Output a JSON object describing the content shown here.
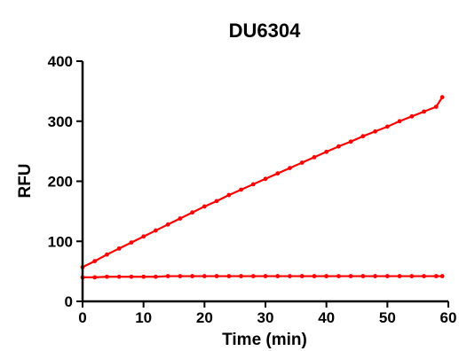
{
  "chart_data": {
    "type": "line",
    "title": "DU6304",
    "xlabel": "Time (min)",
    "ylabel": "RFU",
    "xlim": [
      0,
      60
    ],
    "ylim": [
      0,
      400
    ],
    "xticks": [
      0,
      10,
      20,
      30,
      40,
      50,
      60
    ],
    "yticks": [
      0,
      100,
      200,
      300,
      400
    ],
    "grid": false,
    "series_color": "#ff0000",
    "series": [
      {
        "x": [
          0,
          2,
          4,
          6,
          8,
          10,
          12,
          14,
          16,
          18,
          20,
          22,
          24,
          26,
          28,
          30,
          32,
          34,
          36,
          38,
          40,
          42,
          44,
          46,
          48,
          50,
          52,
          54,
          56,
          58,
          59
        ],
        "y": [
          57,
          67,
          78,
          88,
          98,
          108,
          118,
          128,
          138,
          148,
          158,
          167,
          177,
          186,
          195,
          204,
          213,
          222,
          231,
          240,
          249,
          258,
          266,
          275,
          283,
          291,
          300,
          308,
          316,
          324,
          340
        ]
      },
      {
        "x": [
          0,
          2,
          4,
          6,
          8,
          10,
          12,
          14,
          16,
          18,
          20,
          22,
          24,
          26,
          28,
          30,
          32,
          34,
          36,
          38,
          40,
          42,
          44,
          46,
          48,
          50,
          52,
          54,
          56,
          58,
          59
        ],
        "y": [
          40,
          40,
          41,
          41,
          41,
          41,
          41,
          42,
          42,
          42,
          42,
          42,
          42,
          42,
          42,
          42,
          42,
          42,
          42,
          42,
          42,
          42,
          42,
          42,
          42,
          42,
          42,
          42,
          42,
          42,
          42
        ]
      }
    ]
  }
}
